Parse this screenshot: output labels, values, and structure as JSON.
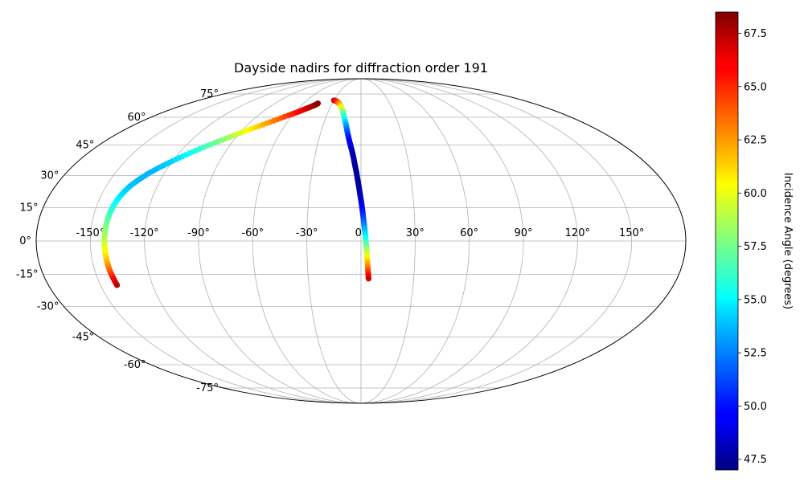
{
  "chart_data": {
    "type": "scatter",
    "projection": "mollweide",
    "title": "Dayside nadirs for diffraction order 191",
    "grid": true,
    "lon_ticks": [
      -150,
      -120,
      -90,
      -60,
      -30,
      0,
      30,
      60,
      90,
      120,
      150
    ],
    "lon_tick_labels": [
      "-150°",
      "-120°",
      "-90°",
      "-60°",
      "-30°",
      "0°",
      "30°",
      "60°",
      "90°",
      "120°",
      "150°"
    ],
    "lat_ticks": [
      -75,
      -60,
      -45,
      -30,
      -15,
      0,
      15,
      30,
      45,
      60,
      75
    ],
    "lat_tick_labels": [
      "-75°",
      "-60°",
      "-45°",
      "-30°",
      "-15°",
      "0°",
      "15°",
      "30°",
      "45°",
      "60°",
      "75°"
    ],
    "colorbar": {
      "label": "Incidence Angle (degrees)",
      "colormap": "jet",
      "range": [
        47.0,
        68.5
      ],
      "ticks": [
        47.5,
        50.0,
        52.5,
        55.0,
        57.5,
        60.0,
        62.5,
        65.0,
        67.5
      ],
      "tick_labels": [
        "47.5",
        "50.0",
        "52.5",
        "55.0",
        "57.5",
        "60.0",
        "62.5",
        "65.0",
        "67.5"
      ]
    },
    "series": [
      {
        "lon": [
          -140.5,
          -141.0,
          -141.5,
          -141.8,
          -142.0,
          -142.1,
          -142.2,
          -142.2,
          -142.1,
          -141.9,
          -141.6,
          -141.2,
          -140.5,
          -139.5,
          -138.0,
          -136.0,
          -133.0,
          -129.5,
          -125.0,
          -120.0,
          -114.5,
          -108.5,
          -102.0,
          -95.0,
          -88.0,
          -80.0,
          -72.0,
          -64.0,
          -58.0,
          -53.0,
          -49.0,
          -46.5,
          -45.0
        ],
        "lat": [
          -20,
          -17,
          -14,
          -11,
          -8,
          -5,
          -2,
          1,
          4,
          7,
          10,
          13,
          16,
          19,
          22,
          25,
          28,
          31,
          34,
          37,
          40,
          43,
          46,
          49,
          52,
          55,
          58,
          61,
          63,
          65,
          66.5,
          67.5,
          68.5
        ],
        "incidence": [
          67.5,
          66.2,
          64.7,
          63.2,
          61.9,
          60.8,
          59.9,
          59.1,
          58.4,
          57.7,
          57.0,
          56.3,
          55.6,
          55.0,
          54.4,
          53.9,
          53.6,
          53.5,
          53.7,
          54.2,
          55.0,
          56.0,
          57.2,
          58.5,
          60.0,
          61.6,
          63.2,
          64.6,
          65.6,
          66.5,
          67.3,
          67.9,
          68.4
        ]
      },
      {
        "lon": [
          -30.0,
          -27.0,
          -24.0,
          -21.0,
          -18.0,
          -16.0,
          -14.0,
          -12.0,
          -10.5,
          -9.0,
          -7.5,
          -6.0,
          -4.8,
          -3.8,
          -2.8,
          -2.0,
          -1.2,
          -0.5,
          0.2,
          0.8,
          1.3,
          1.8,
          2.3,
          2.7,
          3.1,
          3.4,
          3.7,
          4.0,
          4.3
        ],
        "lat": [
          70.5,
          70.0,
          69.0,
          67.5,
          65.0,
          62.5,
          59.5,
          56.0,
          52.5,
          49.0,
          45.5,
          42.0,
          38.5,
          35.0,
          31.5,
          28.0,
          24.5,
          21.0,
          17.5,
          14.0,
          10.5,
          7.0,
          3.5,
          0.0,
          -3.5,
          -7.0,
          -10.5,
          -14.0,
          -17.0
        ],
        "incidence": [
          67.0,
          65.8,
          64.0,
          62.0,
          59.8,
          57.5,
          55.5,
          53.5,
          51.8,
          50.3,
          49.2,
          48.4,
          47.9,
          47.6,
          47.5,
          47.5,
          47.7,
          48.1,
          48.8,
          49.8,
          51.0,
          52.5,
          54.2,
          56.0,
          58.0,
          60.1,
          62.3,
          64.6,
          66.8
        ]
      }
    ]
  }
}
